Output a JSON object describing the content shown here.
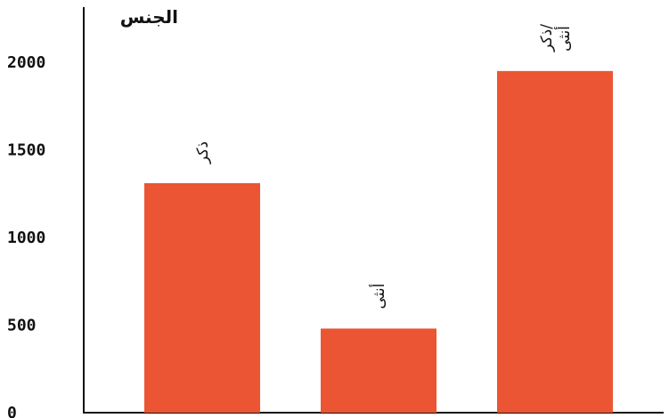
{
  "chart_data": {
    "type": "bar",
    "title": "الجنس",
    "categories": [
      "ذكر",
      "أنثى",
      "ذكر/أنثى"
    ],
    "label_lines": [
      [
        "ذكر"
      ],
      [
        "أنثى"
      ],
      [
        "ذكر/",
        "أنثى"
      ]
    ],
    "values": [
      1310,
      480,
      1950
    ],
    "yticks": [
      0,
      500,
      1000,
      1500,
      2000
    ],
    "ylim": [
      0,
      2400
    ],
    "grid": false,
    "bar_color": "#EB5533",
    "axis_color": "#111111"
  }
}
